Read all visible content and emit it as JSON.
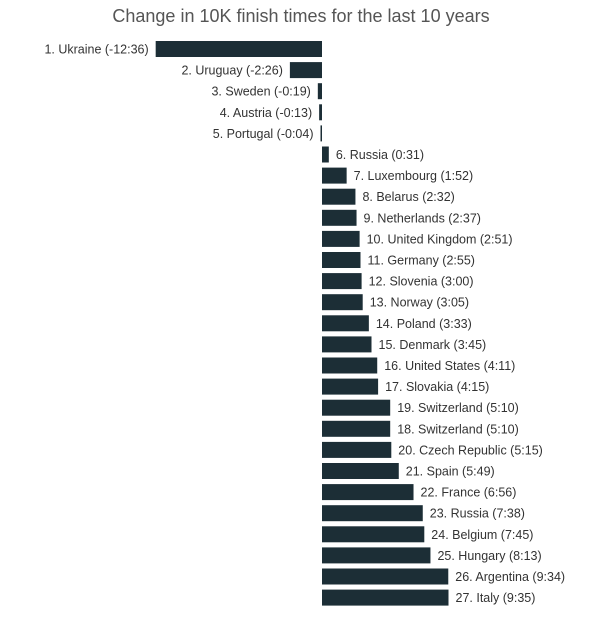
{
  "colors": {
    "bar": "#1c2e36",
    "title": "#555555",
    "label": "#333333",
    "background": "#ffffff"
  },
  "chart_data": {
    "type": "bar",
    "orientation": "horizontal",
    "title": "Change in 10K finish times for the last 10 years",
    "value_unit": "minutes",
    "xlim": [
      -12.6,
      9.6
    ],
    "grid": false,
    "bars": [
      {
        "label": "1. Ukraine (-12:36)",
        "value": -12.6
      },
      {
        "label": "2. Uruguay (-2:26)",
        "value": -2.433
      },
      {
        "label": "3. Sweden (-0:19)",
        "value": -0.317
      },
      {
        "label": "4. Austria (-0:13)",
        "value": -0.217
      },
      {
        "label": "5. Portugal (-0:04)",
        "value": -0.067
      },
      {
        "label": "6. Russia (0:31)",
        "value": 0.517
      },
      {
        "label": "7. Luxembourg (1:52)",
        "value": 1.867
      },
      {
        "label": "8. Belarus (2:32)",
        "value": 2.533
      },
      {
        "label": "9. Netherlands (2:37)",
        "value": 2.617
      },
      {
        "label": "10. United Kingdom (2:51)",
        "value": 2.85
      },
      {
        "label": "11. Germany (2:55)",
        "value": 2.917
      },
      {
        "label": "12. Slovenia (3:00)",
        "value": 3.0
      },
      {
        "label": "13. Norway (3:05)",
        "value": 3.083
      },
      {
        "label": "14. Poland (3:33)",
        "value": 3.55
      },
      {
        "label": "15. Denmark (3:45)",
        "value": 3.75
      },
      {
        "label": "16. United States (4:11)",
        "value": 4.183
      },
      {
        "label": "17. Slovakia (4:15)",
        "value": 4.25
      },
      {
        "label": "19. Switzerland (5:10)",
        "value": 5.167
      },
      {
        "label": "18. Switzerland (5:10)",
        "value": 5.167
      },
      {
        "label": "20. Czech Republic (5:15)",
        "value": 5.25
      },
      {
        "label": "21. Spain (5:49)",
        "value": 5.817
      },
      {
        "label": "22. France (6:56)",
        "value": 6.933
      },
      {
        "label": "23. Russia (7:38)",
        "value": 7.633
      },
      {
        "label": "24. Belgium (7:45)",
        "value": 7.75
      },
      {
        "label": "25. Hungary (8:13)",
        "value": 8.217
      },
      {
        "label": "26. Argentina (9:34)",
        "value": 9.567
      },
      {
        "label": "27. Italy (9:35)",
        "value": 9.583
      }
    ]
  }
}
